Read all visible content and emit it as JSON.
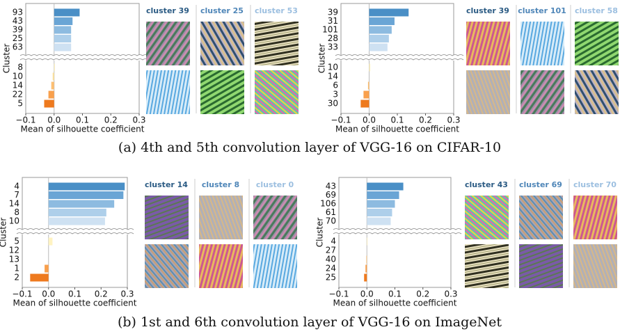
{
  "chart_data": [
    {
      "type": "hbar",
      "ylabel": "Cluster",
      "xlabel": "Mean of silhouette coefficient",
      "categories": [
        "93",
        "43",
        "39",
        "25",
        "63",
        "8",
        "10",
        "14",
        "22",
        "5"
      ],
      "values": [
        0.09,
        0.065,
        0.06,
        0.06,
        0.06,
        0.003,
        -0.005,
        -0.01,
        -0.02,
        -0.035
      ],
      "colors": [
        "#4a8fc6",
        "#6aa5d5",
        "#8dbbe0",
        "#aecfea",
        "#cee1f2",
        "#fff3c2",
        "#fde19c",
        "#fdbf72",
        "#f9a04c",
        "#ee7a1e"
      ],
      "xlim": [
        -0.1,
        0.3
      ],
      "xticks": [
        {
          "value": -0.1,
          "label": "−0.1"
        },
        {
          "value": 0,
          "label": "0.0"
        },
        0.1,
        0.2,
        0.3
      ],
      "cluster_labels": [
        "cluster 39",
        "cluster 25",
        "cluster 53"
      ],
      "cluster_colors": [
        "#2b5b84",
        "#4f86b8",
        "#9cbfe0"
      ]
    },
    {
      "type": "hbar",
      "ylabel": "Cluster",
      "xlabel": "Mean of silhouette coefficient",
      "categories": [
        "39",
        "31",
        "101",
        "28",
        "33",
        "10",
        "14",
        "6",
        "3",
        "30"
      ],
      "values": [
        0.14,
        0.09,
        0.08,
        0.07,
        0.065,
        0.004,
        0.0,
        -0.004,
        -0.02,
        -0.03
      ],
      "colors": [
        "#4a8fc6",
        "#6aa5d5",
        "#8dbbe0",
        "#aecfea",
        "#cee1f2",
        "#fff3c2",
        "#fde19c",
        "#fdbf72",
        "#f9a04c",
        "#ee7a1e"
      ],
      "xlim": [
        -0.1,
        0.3
      ],
      "xticks": [
        {
          "value": -0.1,
          "label": "−0.1"
        },
        {
          "value": 0,
          "label": "0.0"
        },
        0.1,
        0.2,
        0.3
      ],
      "cluster_labels": [
        "cluster 39",
        "cluster 101",
        "cluster 58"
      ],
      "cluster_colors": [
        "#2b5b84",
        "#4f86b8",
        "#9cbfe0"
      ]
    },
    {
      "type": "hbar",
      "ylabel": "Cluster",
      "xlabel": "Mean of silhouette coefficient",
      "categories": [
        "4",
        "7",
        "14",
        "8",
        "10",
        "5",
        "12",
        "13",
        "1",
        "2"
      ],
      "values": [
        0.29,
        0.285,
        0.25,
        0.22,
        0.215,
        0.015,
        0.0,
        0.0,
        -0.015,
        -0.07
      ],
      "colors": [
        "#4a8fc6",
        "#6aa5d5",
        "#8dbbe0",
        "#aecfea",
        "#cee1f2",
        "#fff3c2",
        "#fde19c",
        "#fdbf72",
        "#f9a04c",
        "#ee7a1e"
      ],
      "xlim": [
        -0.1,
        0.3
      ],
      "xticks": [
        {
          "value": -0.1,
          "label": "−0.1"
        },
        {
          "value": 0,
          "label": "0.0"
        },
        0.1,
        0.2,
        0.3
      ],
      "cluster_labels": [
        "cluster 14",
        "cluster 8",
        "cluster 0"
      ],
      "cluster_colors": [
        "#2b5b84",
        "#4f86b8",
        "#9cbfe0"
      ]
    },
    {
      "type": "hbar",
      "ylabel": "Cluster",
      "xlabel": "Mean of silhouette coefficient",
      "categories": [
        "43",
        "69",
        "106",
        "61",
        "70",
        "4",
        "27",
        "40",
        "24",
        "25"
      ],
      "values": [
        0.13,
        0.115,
        0.1,
        0.09,
        0.085,
        0.002,
        0.0,
        -0.002,
        -0.005,
        -0.01
      ],
      "colors": [
        "#4a8fc6",
        "#6aa5d5",
        "#8dbbe0",
        "#aecfea",
        "#cee1f2",
        "#fff3c2",
        "#fde19c",
        "#fdbf72",
        "#f9a04c",
        "#ee7a1e"
      ],
      "xlim": [
        -0.1,
        0.3
      ],
      "xticks": [
        {
          "value": -0.1,
          "label": "−0.1"
        },
        {
          "value": 0,
          "label": "0.0"
        },
        0.1,
        0.2,
        0.3
      ],
      "cluster_labels": [
        "cluster 43",
        "cluster 69",
        "cluster 70"
      ],
      "cluster_colors": [
        "#2b5b84",
        "#4f86b8",
        "#9cbfe0"
      ]
    }
  ],
  "captions": [
    "(a) 4th and 5th convolution layer of VGG-16 on CIFAR-10",
    "(b) 1st and 6th convolution layer of VGG-16 on ImageNet"
  ]
}
